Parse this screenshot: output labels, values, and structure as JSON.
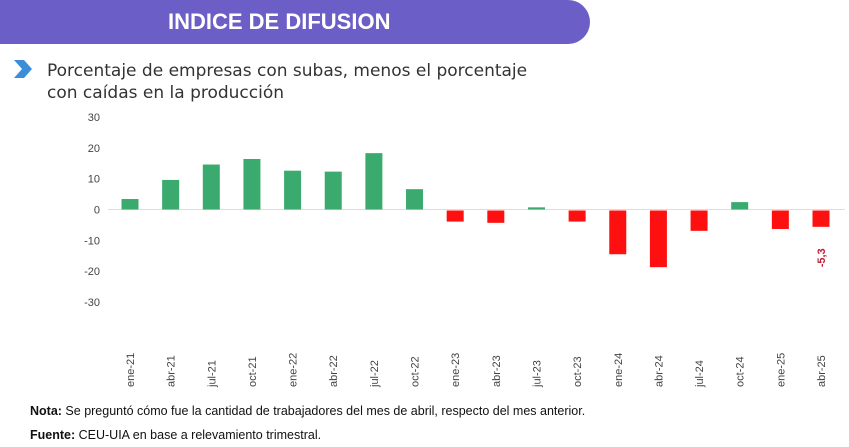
{
  "header": {
    "title": "INDICE DE DIFUSION"
  },
  "subtitle": {
    "line1": "Porcentaje de empresas con subas, menos el porcentaje",
    "line2": "con caídas en la producción"
  },
  "notes": {
    "nota_label": "Nota:",
    "nota_text": " Se preguntó cómo fue la cantidad de trabajadores del mes de abril, respecto del mes anterior.",
    "fuente_label": "Fuente:",
    "fuente_text": " CEU-UIA en base a relevamiento trimestral."
  },
  "colors": {
    "positive": "#3aaa6e",
    "negative": "#ff1010",
    "banner": "#6b5fc7"
  },
  "chart_data": {
    "type": "bar",
    "title": "",
    "xlabel": "",
    "ylabel": "",
    "ylim": [
      -30,
      30
    ],
    "yticks": [
      30,
      20,
      10,
      0,
      -10,
      -20,
      -30
    ],
    "categories": [
      "ene-21",
      "abr-21",
      "jul-21",
      "oct-21",
      "ene-22",
      "abr-22",
      "jul-22",
      "oct-22",
      "ene-23",
      "abr-23",
      "jul-23",
      "oct-23",
      "ene-24",
      "abr-24",
      "jul-24",
      "oct-24",
      "ene-25",
      "abr-25"
    ],
    "values": [
      3.4,
      9.6,
      14.6,
      16.4,
      12.6,
      12.3,
      18.3,
      6.6,
      -3.6,
      -4.0,
      0.7,
      -3.6,
      -14.2,
      -18.4,
      -6.6,
      2.4,
      -6.0,
      -5.3
    ],
    "data_labels": [
      {
        "category": "abr-25",
        "text": "-5,3"
      }
    ]
  }
}
